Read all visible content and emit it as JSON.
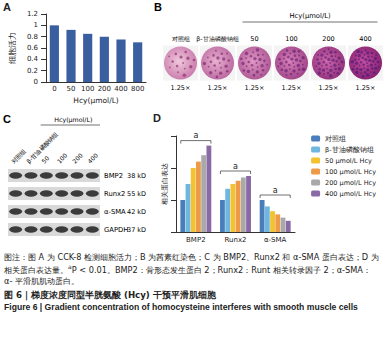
{
  "chart_data": [
    {
      "panel": "A",
      "type": "bar",
      "x_label": "Hcy(μmol/L)",
      "y_label": "细胞活力",
      "categories": [
        "0",
        "50",
        "100",
        "200",
        "400",
        "800"
      ],
      "values": [
        1.0,
        0.92,
        0.85,
        0.8,
        0.75,
        0.7
      ],
      "color": "#3a5fa0",
      "ylim": [
        0,
        1.2
      ],
      "yticks": [
        0,
        0.2,
        0.4,
        0.6,
        0.8,
        1,
        1.2
      ]
    },
    {
      "panel": "D",
      "type": "bar",
      "y_label": "相关蛋白表达",
      "categories": [
        "BMP2",
        "Runx2",
        "α-SMA"
      ],
      "series": [
        {
          "name": "对照组",
          "color": "#4a7ebb",
          "values": [
            1.0,
            1.0,
            1.0
          ]
        },
        {
          "name": "β-甘油磷酸钠组",
          "color": "#6fb7e0",
          "values": [
            1.5,
            1.35,
            0.8
          ]
        },
        {
          "name": "50 μmol/L Hcy",
          "color": "#f2c230",
          "values": [
            2.0,
            1.5,
            0.65
          ]
        },
        {
          "name": "100 μmol/L Hcy",
          "color": "#ef9a48",
          "values": [
            2.2,
            1.6,
            0.55
          ]
        },
        {
          "name": "200 μmol/L Hcy",
          "color": "#a9a9a9",
          "values": [
            2.4,
            1.7,
            0.45
          ]
        },
        {
          "name": "400 μmol/L Hcy",
          "color": "#8a6aa6",
          "values": [
            2.7,
            1.75,
            0.35
          ]
        }
      ],
      "ylim": [
        0,
        3
      ],
      "yticks": [
        0,
        1,
        2,
        3
      ],
      "tick_labels": "x",
      "legend": "right",
      "annotations": [
        {
          "category": "BMP2",
          "text": "a"
        },
        {
          "category": "Runx2",
          "text": "a"
        },
        {
          "category": "α-SMA",
          "text": "a"
        }
      ]
    }
  ],
  "panel_B": {
    "panel": "B",
    "groups": [
      "对照组",
      "β-甘油磷酸钠组"
    ],
    "hcy_label": "Hcy(μmol/L)",
    "concentrations": [
      "50",
      "100",
      "200",
      "400"
    ],
    "magnifications": [
      "1.25×",
      "1.25×",
      "1.25×",
      "1.25×",
      "1.25×",
      "1.25×"
    ]
  },
  "panel_C": {
    "panel": "C",
    "groups": [
      "对照组",
      "β-甘油磷酸钠组"
    ],
    "hcy_label": "Hcy(μmol/L)",
    "concentrations": [
      "50",
      "100",
      "200",
      "400"
    ],
    "proteins": [
      {
        "name": "BMP2",
        "size": "38 kD"
      },
      {
        "name": "Runx2",
        "size": "55 kD"
      },
      {
        "name": "α-SMA",
        "size": "42 kD"
      },
      {
        "name": "GAPDH",
        "size": "37 kD"
      }
    ]
  },
  "caption": {
    "note_before": "图注：图 A 为 CCK-8 检测细胞活力；B 为茜素红染色；C 为 BMP2、Runx2 和 α-SMA 蛋白表达；D 为相关蛋白表达量。",
    "note_sup": "a",
    "note_after": "P < 0.01。BMP2：骨形态发生蛋白 2；Runx2：Runt 相关转录因子 2；α-SMA：α- 平滑肌肌动蛋白。",
    "title_zh": "图 6｜梯度浓度同型半胱氨酸 (Hcy) 干预平滑肌细胞",
    "title_en": "Figure 6 | Gradient concentration of homocysteine interferes with smooth muscle cells"
  }
}
